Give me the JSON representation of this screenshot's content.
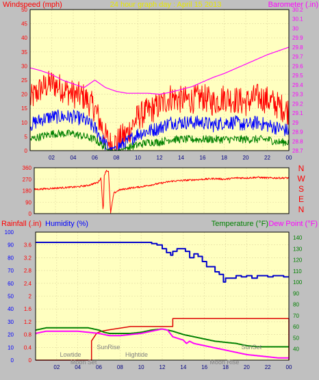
{
  "header": {
    "windspeed_label": "Windspeed (mph)",
    "title": "24 hour graph day : April 15 2013",
    "barometer_label": "Barometer (.in)"
  },
  "lower_header": {
    "rainfall_label": "Rainfall (.in)",
    "humidity_label": "Humidity (%)",
    "temperature_label": "Temperature (°F)",
    "dewpoint_label": "Dew Point (°F)"
  },
  "colors": {
    "background": "#c0c0c0",
    "plot_bg": "#ffffc0",
    "gust": "#ff0000",
    "average": "#0000ff",
    "low": "#008000",
    "barometer": "#ff00ff",
    "direction": "#ff0000",
    "rain": "#dd0000",
    "humidity": "#0000cc",
    "temperature": "#008000",
    "dewpoint": "#ff00ff",
    "label_gray": "#808080"
  },
  "chart_data": [
    {
      "type": "line",
      "name": "wind-barometer",
      "x_ticks": [
        "02",
        "04",
        "06",
        "08",
        "10",
        "12",
        "14",
        "16",
        "18",
        "20",
        "22",
        "00"
      ],
      "left_axis": {
        "label": "Windspeed (mph)",
        "ticks": [
          0,
          5,
          10,
          15,
          20,
          25,
          30,
          35,
          40,
          45,
          50
        ],
        "range": [
          0,
          50
        ]
      },
      "right_axis": {
        "label": "Barometer (.in)",
        "ticks": [
          "28.7",
          "28.8",
          "28.9",
          "29",
          "29.1",
          "29.2",
          "29.3",
          "29.4",
          "29.5",
          "29.6",
          "29.7",
          "29.8",
          "29.9",
          "30",
          "30.1",
          "30.2"
        ],
        "range": [
          28.7,
          30.2
        ]
      },
      "x_range_hours": [
        0,
        24
      ],
      "series": [
        {
          "id": "gust",
          "axis": "left",
          "hours": [
            0,
            1,
            2,
            3,
            4,
            5,
            6,
            7,
            7.5,
            8,
            9,
            10,
            11,
            12,
            13,
            14,
            15,
            16,
            17,
            18,
            19,
            20,
            21,
            22,
            23,
            24
          ],
          "values": [
            18,
            22,
            24,
            22,
            20,
            19,
            15,
            5,
            2,
            3,
            6,
            12,
            14,
            16,
            19,
            18,
            18,
            19,
            17,
            19,
            18,
            17,
            19,
            18,
            16,
            14
          ]
        },
        {
          "id": "average",
          "axis": "left",
          "hours": [
            0,
            1,
            2,
            3,
            4,
            5,
            6,
            7,
            7.5,
            8,
            9,
            10,
            11,
            12,
            13,
            14,
            15,
            16,
            17,
            18,
            19,
            20,
            21,
            22,
            23,
            24
          ],
          "values": [
            9,
            11,
            12,
            12,
            12,
            11,
            8,
            2,
            0.5,
            1,
            3,
            6,
            7,
            8,
            10,
            10,
            10,
            10,
            9,
            10,
            10,
            9,
            10,
            9,
            8,
            7
          ]
        },
        {
          "id": "low",
          "axis": "left",
          "hours": [
            0,
            1,
            2,
            3,
            4,
            5,
            6,
            7,
            7.5,
            8,
            9,
            10,
            11,
            12,
            13,
            14,
            15,
            16,
            17,
            18,
            19,
            20,
            21,
            22,
            23,
            24
          ],
          "values": [
            4,
            5,
            6,
            6,
            6,
            5,
            4,
            1,
            0,
            0,
            1,
            2,
            3,
            3,
            4,
            4,
            4,
            4,
            4,
            4,
            4,
            4,
            4,
            4,
            3,
            3
          ]
        },
        {
          "id": "barometer",
          "axis": "right",
          "hours": [
            0,
            1,
            2,
            3,
            4,
            5,
            6,
            7,
            8,
            9,
            10,
            11,
            12,
            13,
            14,
            15,
            16,
            17,
            18,
            19,
            20,
            21,
            22,
            23,
            24
          ],
          "values": [
            29.58,
            29.55,
            29.51,
            29.45,
            29.41,
            29.37,
            29.45,
            29.37,
            29.33,
            29.31,
            29.31,
            29.31,
            29.3,
            29.32,
            29.35,
            29.38,
            29.43,
            29.48,
            29.52,
            29.57,
            29.62,
            29.67,
            29.72,
            29.76,
            29.8
          ]
        }
      ]
    },
    {
      "type": "line",
      "name": "wind-direction",
      "left_ticks": [
        0,
        90,
        180,
        270,
        360
      ],
      "y_range": [
        0,
        360
      ],
      "direction_labels": [
        "N",
        "W",
        "S",
        "E",
        "N"
      ],
      "hours": [
        0,
        1,
        2,
        3,
        4,
        5,
        6,
        6.3,
        6.5,
        6.6,
        6.8,
        7,
        7.2,
        7.5,
        8,
        9,
        10,
        11,
        12,
        13,
        14,
        15,
        16,
        17,
        18,
        19,
        20,
        21,
        22,
        23,
        24
      ],
      "values": [
        190,
        195,
        200,
        205,
        210,
        220,
        245,
        280,
        5,
        300,
        340,
        330,
        5,
        160,
        185,
        200,
        210,
        225,
        240,
        255,
        260,
        265,
        270,
        275,
        270,
        280,
        280,
        285,
        280,
        280,
        280
      ]
    },
    {
      "type": "line",
      "name": "rain-humidity-temperature",
      "x_ticks": [
        "02",
        "04",
        "06",
        "08",
        "10",
        "12",
        "14",
        "16",
        "18",
        "20",
        "22",
        "00"
      ],
      "left_axis": {
        "label": "Rainfall (.in)",
        "ticks": [
          "0",
          "0.4",
          "0.8",
          "1.2",
          "1.6",
          "2",
          "2.4",
          "2.8",
          "3.2",
          "3.6"
        ],
        "range": [
          0,
          4
        ]
      },
      "humidity_axis": {
        "label": "Humidity (%)",
        "ticks": [
          0,
          10,
          20,
          30,
          40,
          50,
          60,
          70,
          80,
          90,
          100
        ],
        "range": [
          0,
          100
        ]
      },
      "right_axis": {
        "label": "Temperature (°F)",
        "ticks": [
          40,
          50,
          60,
          70,
          80,
          90,
          100,
          110,
          120,
          130,
          140
        ],
        "range": [
          30,
          145
        ]
      },
      "series": [
        {
          "id": "rain",
          "hours": [
            0,
            5.1,
            5.3,
            5.8,
            6.2,
            7,
            8,
            9,
            10,
            11,
            12,
            12.9,
            13,
            24
          ],
          "values": [
            0,
            0,
            0.6,
            0.85,
            0.9,
            0.95,
            1.0,
            1.05,
            1.05,
            1.05,
            1.05,
            1.05,
            1.3,
            1.3
          ]
        },
        {
          "id": "humidity",
          "hours": [
            0,
            2,
            4,
            6,
            8,
            10,
            11,
            11.5,
            12,
            12.4,
            12.8,
            13,
            13.4,
            13.8,
            14.2,
            14.6,
            15,
            15.4,
            15.8,
            16.2,
            16.6,
            17,
            17.4,
            17.8,
            18,
            18.5,
            19,
            19.5,
            20,
            20.5,
            21,
            21.5,
            22,
            22.5,
            23,
            23.5,
            24
          ],
          "values": [
            92,
            92,
            92,
            92,
            92,
            92,
            91,
            90,
            87,
            84,
            82,
            85,
            87,
            87,
            85,
            80,
            83,
            81,
            77,
            73,
            73,
            69,
            67,
            61,
            64,
            64,
            66,
            65,
            66,
            64,
            66,
            66,
            65,
            66,
            66,
            65,
            65
          ]
        },
        {
          "id": "temperature",
          "hours": [
            0,
            1,
            2,
            3,
            4,
            5,
            6,
            6.5,
            7,
            8,
            9,
            10,
            11,
            12,
            13,
            14,
            15,
            16,
            17,
            18,
            19,
            20,
            21,
            22,
            23,
            24
          ],
          "values": [
            57,
            59,
            59,
            59,
            59,
            59,
            57,
            55,
            54,
            54,
            54,
            55,
            57,
            58,
            56,
            53,
            51,
            49,
            47,
            46,
            45,
            43,
            42,
            42,
            42,
            42
          ]
        },
        {
          "id": "dewpoint",
          "hours": [
            0,
            1,
            2,
            3,
            4,
            5,
            6,
            6.5,
            7,
            8,
            9,
            10,
            11,
            12,
            12.5,
            13,
            14,
            14.3,
            14.6,
            15,
            15.5,
            16,
            17,
            18,
            19,
            20,
            21,
            22,
            23,
            24
          ],
          "values": [
            54,
            56,
            56,
            56,
            56,
            55,
            54,
            53,
            52,
            52,
            53,
            54,
            56,
            58,
            57,
            51,
            48,
            45,
            47,
            45,
            44,
            43,
            41,
            39,
            37,
            35,
            34,
            33,
            32,
            32
          ]
        }
      ],
      "annotations": [
        {
          "text": "Lowtide",
          "hour": 2.3,
          "row": "upper"
        },
        {
          "text": "Moon Set",
          "hour": 3.3,
          "row": "lower"
        },
        {
          "text": "SunRise",
          "hour": 5.8,
          "row": "high"
        },
        {
          "text": "Hightide",
          "hour": 8.5,
          "row": "upper"
        },
        {
          "text": "Moon Rise",
          "hour": 16.5,
          "row": "lower"
        },
        {
          "text": "SunSet",
          "hour": 19.5,
          "row": "high"
        }
      ]
    }
  ]
}
